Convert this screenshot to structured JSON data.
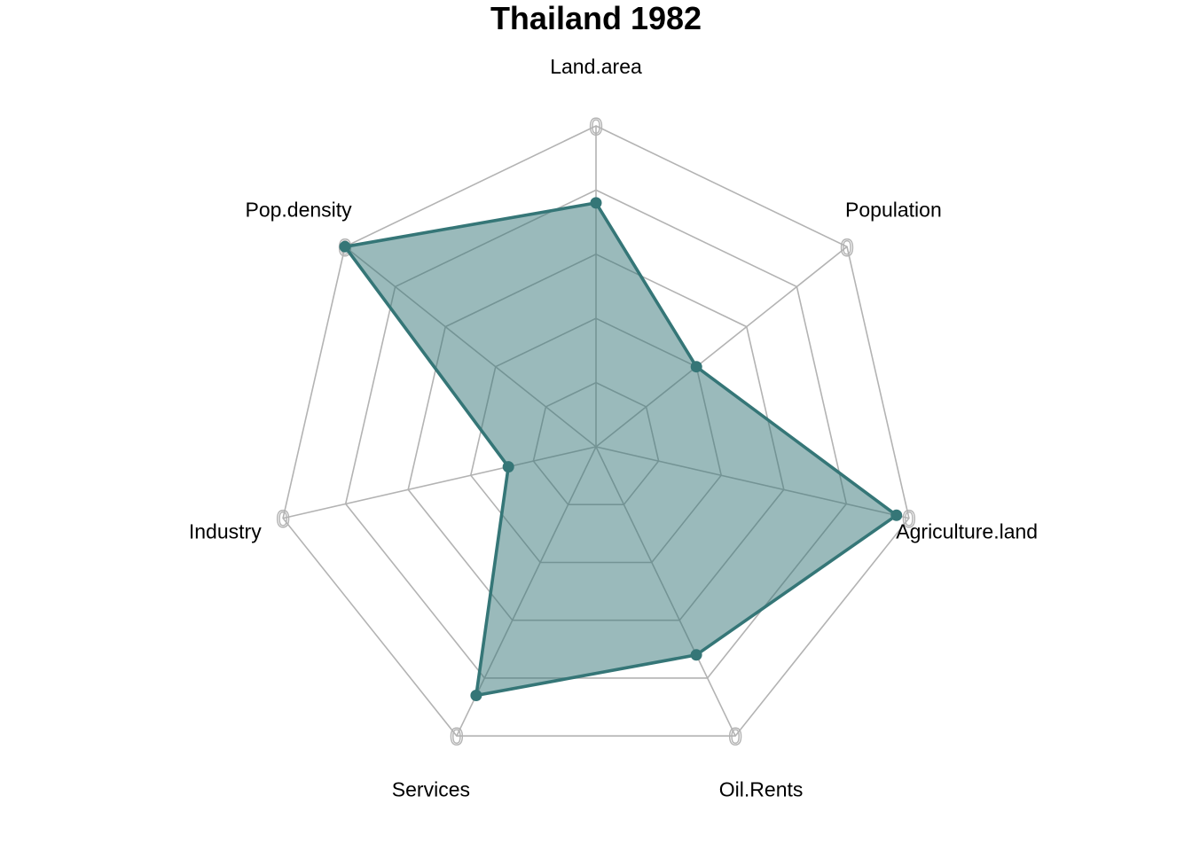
{
  "chart_data": {
    "type": "radar",
    "title": "Thailand 1982",
    "axes": [
      "Land.area",
      "Population",
      "Agriculture.land",
      "Oil.Rents",
      "Services",
      "Industry",
      "Pop.density"
    ],
    "series": [
      {
        "values": [
          0.76,
          0.4,
          0.96,
          0.72,
          0.86,
          0.28,
          1.0
        ]
      }
    ],
    "range": [
      0,
      1
    ],
    "grid_levels": 5,
    "axis_tick_label": "0",
    "colors": {
      "series_line": "#357677",
      "series_fill": "#357677",
      "grid": "#b3b3b3"
    },
    "grid": true,
    "legend": "none"
  }
}
